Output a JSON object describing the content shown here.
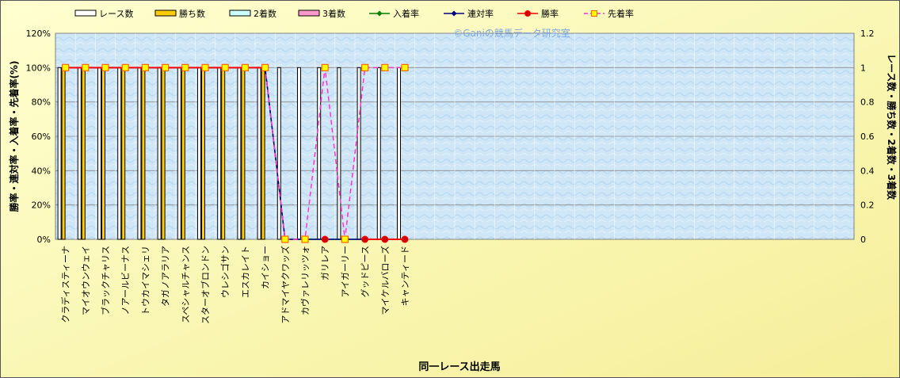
{
  "watermark": "©Ganiの競馬データ研究室",
  "chart_data": {
    "type": "bar",
    "xlabel": "同一レース出走馬",
    "ylabel_left": "勝率・連対率・入着率・先着率(%)",
    "ylabel_right": "レース数・勝ち数・2着数・3着数",
    "left_axis": {
      "min": 0,
      "max": 120,
      "step": 20,
      "suffix": "%"
    },
    "right_axis": {
      "min": 0,
      "max": 1.2,
      "step": 0.2
    },
    "total_slots": 40,
    "legend": [
      {
        "key": "races",
        "label": "レース数",
        "kind": "bar",
        "fill": "#ffffff",
        "stroke": "#000000"
      },
      {
        "key": "wins",
        "label": "勝ち数",
        "kind": "bar",
        "fill": "#ffcc00",
        "stroke": "#000000"
      },
      {
        "key": "second",
        "label": "2着数",
        "kind": "bar",
        "fill": "#ccffff",
        "stroke": "#000000"
      },
      {
        "key": "third",
        "label": "3着数",
        "kind": "bar",
        "fill": "#ff99cc",
        "stroke": "#000000"
      },
      {
        "key": "place_rate",
        "label": "入着率",
        "kind": "line",
        "color": "#008000",
        "marker": "diamond"
      },
      {
        "key": "quinella_rate",
        "label": "連対率",
        "kind": "line",
        "color": "#000080",
        "marker": "diamond"
      },
      {
        "key": "win_rate",
        "label": "勝率",
        "kind": "line",
        "color": "#ff0000",
        "marker": "circle",
        "marker_fill": "#cc0000"
      },
      {
        "key": "finish_ahead_rate",
        "label": "先着率",
        "kind": "dashline",
        "color": "#ff33cc",
        "marker": "square",
        "marker_fill": "#ffff00",
        "marker_stroke": "#ff6600"
      }
    ],
    "categories": [
      "クラディスティーナ",
      "マイオウンウェイ",
      "ブラックチャリス",
      "ノアールビーナス",
      "トウカイマシェリ",
      "タガノアラリア",
      "スペシャルチャンス",
      "スターオブロンドン",
      "ウレシゴサン",
      "エスカレイト",
      "カイショー",
      "アドマイヤクワッズ",
      "カヴァレリッツォ",
      "ガリレア",
      "アイガーリー",
      "グッドピース",
      "マイケルバローズ",
      "キャンティード"
    ],
    "series": {
      "races": [
        1,
        1,
        1,
        1,
        1,
        1,
        1,
        1,
        1,
        1,
        1,
        1,
        1,
        1,
        1,
        1,
        1,
        1
      ],
      "wins": [
        1,
        1,
        1,
        1,
        1,
        1,
        1,
        1,
        1,
        1,
        1,
        0,
        0,
        0,
        0,
        0,
        0,
        0
      ],
      "second": [
        0,
        0,
        0,
        0,
        0,
        0,
        0,
        0,
        0,
        0,
        0,
        0,
        0,
        0,
        0,
        0,
        0,
        0
      ],
      "third": [
        0,
        0,
        0,
        0,
        0,
        0,
        0,
        0,
        0,
        0,
        0,
        0,
        0,
        0,
        0,
        0,
        0,
        0
      ],
      "place_rate": [
        100,
        100,
        100,
        100,
        100,
        100,
        100,
        100,
        100,
        100,
        100,
        0,
        0,
        0,
        0,
        0,
        0,
        0
      ],
      "quinella_rate": [
        100,
        100,
        100,
        100,
        100,
        100,
        100,
        100,
        100,
        100,
        100,
        0,
        0,
        0,
        0,
        0,
        0,
        0
      ],
      "win_rate": [
        100,
        100,
        100,
        100,
        100,
        100,
        100,
        100,
        100,
        100,
        100,
        null,
        null,
        0,
        null,
        0,
        0,
        0
      ],
      "finish_ahead_rate": [
        100,
        100,
        100,
        100,
        100,
        100,
        100,
        100,
        100,
        100,
        100,
        0,
        0,
        100,
        0,
        100,
        100,
        100
      ]
    }
  }
}
